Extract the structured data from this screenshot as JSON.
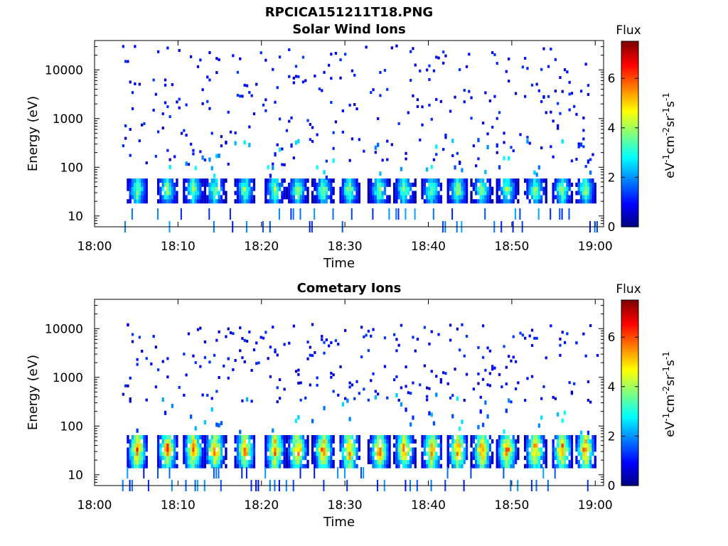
{
  "figure": {
    "title": "RPCICA151211T18.PNG"
  },
  "colors": {
    "background": "#ffffff",
    "axis": "#000000",
    "colormap": [
      "#00007f",
      "#0000ff",
      "#007fff",
      "#00ffff",
      "#7fff7f",
      "#ffff00",
      "#ff7f00",
      "#ff0000",
      "#7f0000"
    ]
  },
  "chart_data": [
    {
      "type": "heatmap",
      "title": "Solar Wind Ions",
      "xlabel": "Time",
      "ylabel": "Energy (eV)",
      "x_ticks": [
        "18:00",
        "18:10",
        "18:20",
        "18:30",
        "18:40",
        "18:50",
        "19:00"
      ],
      "xlim_minutes": [
        0,
        61
      ],
      "y_scale": "log",
      "y_ticks": [
        10,
        100,
        1000,
        10000
      ],
      "ylim": [
        6,
        40000
      ],
      "data_start_minute": 3.3,
      "colorbar": {
        "title": "Flux",
        "label": "eV-1cm-2sr-1s-1",
        "ticks": [
          0,
          2,
          4,
          6
        ],
        "range": [
          0,
          7.5
        ]
      },
      "profile": {
        "background_energy_ev": [
          100,
          30000
        ],
        "background_flux": 1,
        "band_energy_ev": [
          20,
          60
        ],
        "band_peak_flux": 4.5,
        "low_energy_lines_ev": [
          6,
          11
        ],
        "low_energy_flux": 2
      },
      "burst_minutes": [
        5.0,
        8.6,
        11.7,
        14.3,
        17.9,
        21.5,
        24.2,
        27.3,
        30.4,
        34.0,
        37.0,
        40.3,
        43.4,
        46.3,
        49.3,
        52.7,
        55.9,
        58.7
      ]
    },
    {
      "type": "heatmap",
      "title": "Cometary Ions",
      "xlabel": "Time",
      "ylabel": "Energy (eV)",
      "x_ticks": [
        "18:00",
        "18:10",
        "18:20",
        "18:30",
        "18:40",
        "18:50",
        "19:00"
      ],
      "xlim_minutes": [
        0,
        61
      ],
      "y_scale": "log",
      "y_ticks": [
        10,
        100,
        1000,
        10000
      ],
      "ylim": [
        6,
        40000
      ],
      "data_start_minute": 3.3,
      "colorbar": {
        "title": "Flux",
        "label": "eV-1cm-2sr-1s-1",
        "ticks": [
          0,
          2,
          4,
          6
        ],
        "range": [
          0,
          7.5
        ]
      },
      "profile": {
        "background_energy_ev": [
          300,
          12000
        ],
        "background_flux": 1,
        "band_energy_ev": [
          15,
          70
        ],
        "band_peak_flux": 6.5,
        "low_energy_lines_ev": [
          6,
          11
        ],
        "low_energy_flux": 2
      },
      "burst_minutes": [
        5.0,
        8.6,
        11.7,
        14.3,
        17.9,
        21.5,
        24.2,
        27.3,
        30.4,
        34.0,
        37.0,
        40.3,
        43.4,
        46.3,
        49.3,
        52.7,
        55.9,
        58.7
      ]
    }
  ]
}
